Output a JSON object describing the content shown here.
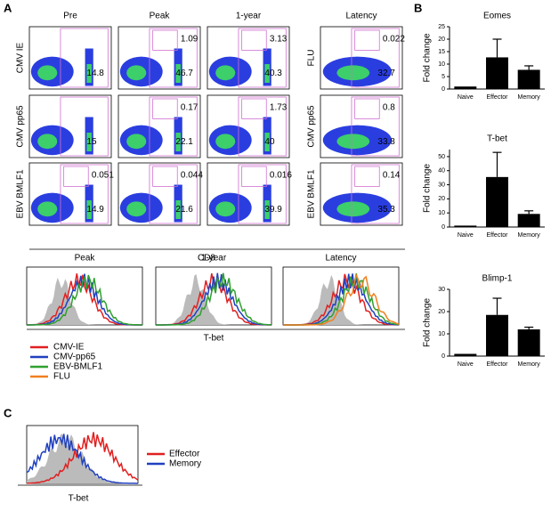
{
  "panel_labels": [
    "A",
    "B",
    "C"
  ],
  "panel_a": {
    "columns": [
      "Pre",
      "Peak",
      "1-year",
      "Latency"
    ],
    "row_labels": [
      "CMV IE",
      "CMV pp65",
      "EBV BMLF1"
    ],
    "latency_row_labels": [
      "FLU",
      "CMV pp65",
      "EBV BMLF1"
    ],
    "gates": [
      [
        {
          "lower": "14.8"
        },
        {
          "lower": "15"
        },
        {
          "upper": "0.051",
          "lower": "14.9"
        }
      ],
      [
        {
          "upper": "1.09",
          "lower": "46.7"
        },
        {
          "upper": "0.17",
          "lower": "22.1"
        },
        {
          "upper": "0.044",
          "lower": "21.6"
        }
      ],
      [
        {
          "upper": "3.13",
          "lower": "40.3"
        },
        {
          "upper": "1.73",
          "lower": "40"
        },
        {
          "upper": "0.016",
          "lower": "39.9"
        }
      ],
      [
        {
          "upper": "0.022",
          "lower": "32.7"
        },
        {
          "upper": "0.8",
          "lower": "33.8"
        },
        {
          "upper": "0.14",
          "lower": "35.3"
        }
      ]
    ],
    "flow_x_label": "CD8",
    "histogram_titles": [
      "Peak",
      "1-year",
      "Latency"
    ],
    "histogram_x_label": "T-bet",
    "legend": [
      {
        "name": "CMV-IE",
        "color": "#e02020"
      },
      {
        "name": "CMV-pp65",
        "color": "#2040c0"
      },
      {
        "name": "EBV-BMLF1",
        "color": "#30a030"
      },
      {
        "name": "FLU",
        "color": "#f08020"
      }
    ]
  },
  "panel_c": {
    "x_label": "T-bet",
    "legend": [
      {
        "name": "Effector",
        "color": "#e02020"
      },
      {
        "name": "Memory",
        "color": "#2040c0"
      }
    ]
  },
  "chart_data": [
    {
      "type": "bar",
      "title": "Eomes",
      "y_label": "Fold change",
      "categories": [
        "Naive",
        "Effector",
        "Memory"
      ],
      "values": [
        1,
        12.7,
        7.7
      ],
      "errors": [
        0,
        7.3,
        1.6
      ],
      "color": "#000000",
      "ylim": [
        0,
        25
      ],
      "yticks": [
        0,
        5,
        10,
        15,
        20,
        25
      ]
    },
    {
      "type": "bar",
      "title": "T-bet",
      "y_label": "Fold change",
      "categories": [
        "Naive",
        "Effector",
        "Memory"
      ],
      "values": [
        1,
        35.5,
        9.3
      ],
      "errors": [
        0,
        17.5,
        2.2
      ],
      "color": "#000000",
      "ylim": [
        0,
        55
      ],
      "yticks": [
        0,
        10,
        20,
        30,
        40,
        50
      ]
    },
    {
      "type": "bar",
      "title": "Blimp-1",
      "y_label": "Fold change",
      "categories": [
        "Naive",
        "Effector",
        "Memory"
      ],
      "values": [
        1,
        18.5,
        12
      ],
      "errors": [
        0,
        7.5,
        1
      ],
      "color": "#000000",
      "ylim": [
        0,
        30
      ],
      "yticks": [
        0,
        10,
        20,
        30
      ]
    }
  ]
}
